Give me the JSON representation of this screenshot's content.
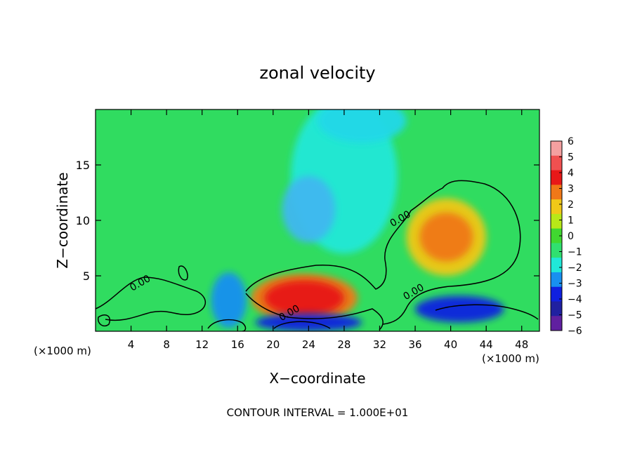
{
  "chart_data": {
    "type": "heatmap",
    "title": "zonal velocity",
    "xlabel": "X−coordinate",
    "ylabel": "Z−coordinate",
    "x_unit_left": "(×1000 m)",
    "x_unit_right": "(×1000 m)",
    "footer": "CONTOUR INTERVAL = 1.000E+01",
    "xlim": [
      0,
      50
    ],
    "ylim": [
      0,
      20
    ],
    "x_ticks": [
      4,
      8,
      12,
      16,
      20,
      24,
      28,
      32,
      36,
      40,
      44,
      48
    ],
    "x_tick_labels": [
      "4",
      "8",
      "12",
      "16",
      "20",
      "24",
      "28",
      "32",
      "36",
      "40",
      "44",
      "48"
    ],
    "y_ticks": [
      5,
      10,
      15
    ],
    "y_tick_labels": [
      "5",
      "10",
      "15"
    ],
    "contour_labels": [
      {
        "text": "0.00",
        "x": 5.2,
        "y": 4.1
      },
      {
        "text": "0.00",
        "x": 34.5,
        "y": 9.9
      },
      {
        "text": "0.00",
        "x": 36.0,
        "y": 3.3
      },
      {
        "text": "0.00",
        "x": 22.0,
        "y": 1.4
      }
    ],
    "colorbar": {
      "levels": [
        6,
        5,
        4,
        3,
        2,
        1,
        0,
        -1,
        -2,
        -3,
        -4,
        -5,
        -6
      ],
      "labels": [
        "6",
        "5",
        "4",
        "3",
        "2",
        "1",
        "0",
        "−1",
        "−2",
        "−3",
        "−4",
        "−5",
        "−6"
      ],
      "colors": [
        "#f4a0a0",
        "#f05050",
        "#e81818",
        "#f07818",
        "#f0c818",
        "#b8e818",
        "#40d830",
        "#30e070",
        "#20e8d8",
        "#1890f0",
        "#1020e0",
        "#2020a0",
        "#6020a0"
      ]
    },
    "background_color": "#30dc60",
    "features": [
      {
        "kind": "cyan-plume",
        "x": 28,
        "y": 14,
        "rx": 6,
        "ry": 7,
        "value": -2,
        "color": "#20e8d8"
      },
      {
        "kind": "cyan-plume",
        "x": 24,
        "y": 11,
        "rx": 3,
        "ry": 3,
        "value": -2.5,
        "color": "#40b8f0"
      },
      {
        "kind": "cyan-top",
        "x": 30,
        "y": 19,
        "rx": 5,
        "ry": 2,
        "value": -2,
        "color": "#20d8e8"
      },
      {
        "kind": "orange-core",
        "x": 39.5,
        "y": 8.5,
        "rx": 4.5,
        "ry": 3.5,
        "value": 2,
        "color": "#f0c818"
      },
      {
        "kind": "orange-core",
        "x": 39.5,
        "y": 8.5,
        "rx": 3,
        "ry": 2.2,
        "value": 3,
        "color": "#f07818"
      },
      {
        "kind": "red-core",
        "x": 23.5,
        "y": 3,
        "rx": 6,
        "ry": 2.2,
        "value": 3,
        "color": "#f07818"
      },
      {
        "kind": "red-core",
        "x": 23.5,
        "y": 3,
        "rx": 4.5,
        "ry": 1.6,
        "value": 4,
        "color": "#e81818"
      },
      {
        "kind": "blue-low",
        "x": 15,
        "y": 2.8,
        "rx": 2,
        "ry": 2.5,
        "value": -3,
        "color": "#1890f0"
      },
      {
        "kind": "blue-low",
        "x": 41,
        "y": 2,
        "rx": 5,
        "ry": 1.2,
        "value": -4,
        "color": "#1020e0"
      },
      {
        "kind": "blue-low",
        "x": 24,
        "y": 0.8,
        "rx": 6,
        "ry": 0.8,
        "value": -4,
        "color": "#1020e0"
      }
    ]
  }
}
